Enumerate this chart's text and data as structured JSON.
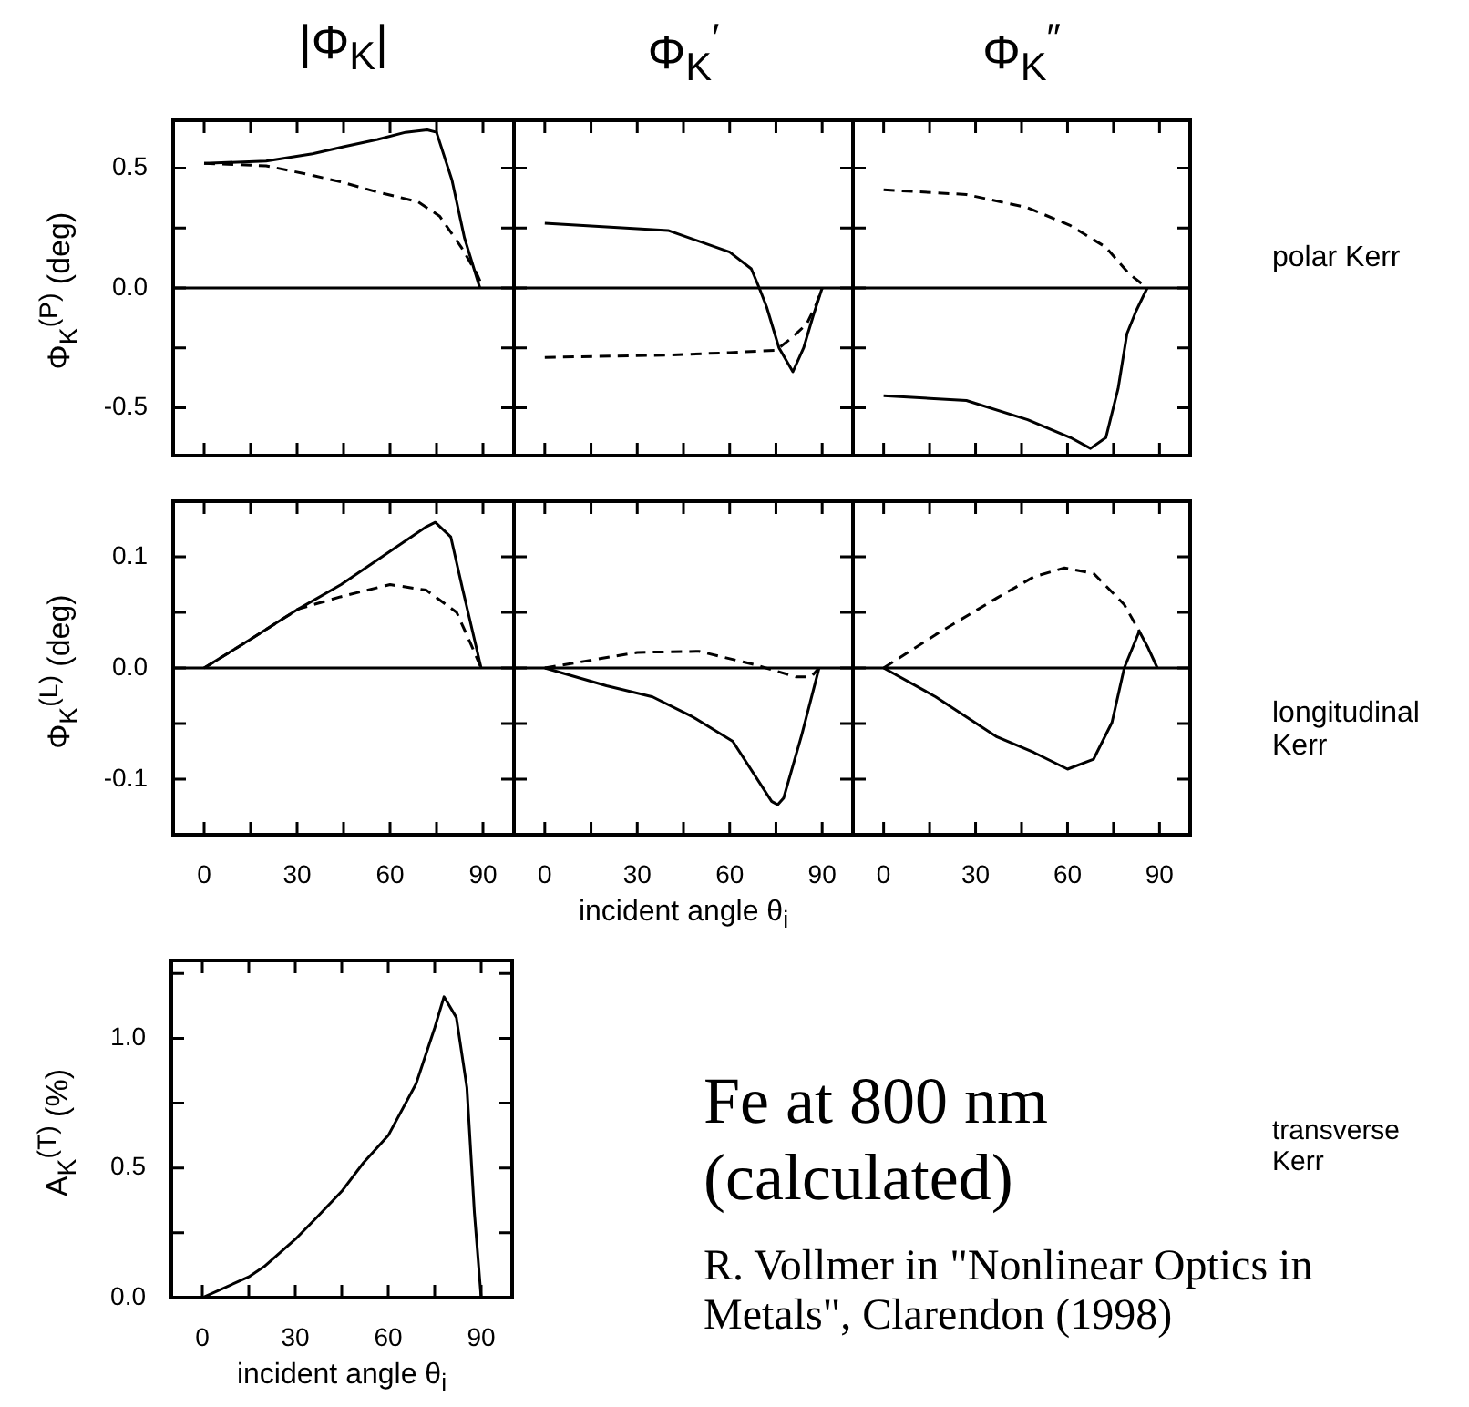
{
  "chart_data": [
    {
      "type": "line",
      "title": "|Φ$_{K}$|",
      "ylabel": "Φ$_{K}$$^{(P)}$ (deg)",
      "xlim": [
        -10,
        100
      ],
      "ylim": [
        -0.7,
        0.7
      ],
      "xticks": [
        0,
        {
          "value": 15,
          "label": null
        },
        30,
        {
          "value": 45,
          "label": null
        },
        60,
        {
          "value": 75,
          "label": null
        },
        90
      ],
      "yticks": [
        -0.5,
        {
          "value": -0.25,
          "label": null
        },
        {
          "value": 0,
          "label": "0.0"
        },
        {
          "value": 0.25,
          "label": null
        },
        0.5
      ],
      "tick_labels": "y",
      "ref_lines": [
        {
          "axis": "y",
          "value": 0
        }
      ],
      "series": [
        {
          "color": "#000000",
          "line_style": "solid",
          "x": [
            0,
            20,
            35,
            45,
            56,
            65,
            72,
            75,
            80,
            84,
            89
          ],
          "values": [
            0.52,
            0.53,
            0.56,
            0.59,
            0.62,
            0.65,
            0.66,
            0.65,
            0.45,
            0.21,
            0
          ]
        },
        {
          "color": "#000000",
          "line_style": "dashed",
          "x": [
            0,
            20,
            35,
            45,
            56,
            69,
            76,
            83,
            88,
            90
          ],
          "values": [
            0.52,
            0.51,
            0.47,
            0.44,
            0.4,
            0.36,
            0.3,
            0.17,
            0.06,
            0
          ]
        }
      ]
    },
    {
      "type": "line",
      "title": "Φ$_{K}$$^{′}$",
      "xlim": [
        -10,
        100
      ],
      "ylim": [
        -0.7,
        0.7
      ],
      "xticks": [
        0,
        15,
        30,
        45,
        60,
        75,
        90
      ],
      "yticks": [
        -0.5,
        -0.25,
        0,
        0.25,
        0.5
      ],
      "tick_labels": false,
      "ref_lines": [
        {
          "axis": "y",
          "value": 0
        }
      ],
      "series": [
        {
          "color": "#000000",
          "line_style": "solid",
          "x": [
            0,
            40,
            60,
            67,
            69.6,
            72,
            76,
            80.5,
            84,
            87,
            90
          ],
          "values": [
            0.27,
            0.24,
            0.15,
            0.08,
            0,
            -0.08,
            -0.25,
            -0.35,
            -0.25,
            -0.12,
            0
          ]
        },
        {
          "color": "#000000",
          "line_style": "dashed",
          "x": [
            0,
            40,
            60,
            75,
            80,
            85,
            88,
            90
          ],
          "values": [
            -0.29,
            -0.28,
            -0.27,
            -0.26,
            -0.21,
            -0.15,
            -0.07,
            0
          ]
        }
      ]
    },
    {
      "type": "line",
      "title": "Φ$_{K}$$^{″}$",
      "xlim": [
        -10,
        100
      ],
      "ylim": [
        -0.7,
        0.7
      ],
      "xticks": [
        0,
        15,
        30,
        45,
        60,
        75,
        90
      ],
      "yticks": [
        -0.5,
        -0.25,
        0,
        0.25,
        0.5
      ],
      "tick_labels": false,
      "ref_lines": [
        {
          "axis": "y",
          "value": 0
        }
      ],
      "annotations": [
        "polar Kerr"
      ],
      "series": [
        {
          "color": "#000000",
          "line_style": "dashed",
          "x": [
            0,
            27,
            47,
            61,
            72.5,
            80,
            86
          ],
          "values": [
            0.41,
            0.39,
            0.335,
            0.26,
            0.17,
            0.06,
            0
          ]
        },
        {
          "color": "#000000",
          "line_style": "solid",
          "x": [
            0,
            27,
            47,
            61,
            67.5,
            72.5,
            76.5,
            79.4,
            82.4,
            86
          ],
          "values": [
            -0.45,
            -0.47,
            -0.55,
            -0.625,
            -0.67,
            -0.625,
            -0.42,
            -0.19,
            -0.095,
            0
          ]
        }
      ]
    },
    {
      "type": "line",
      "ylabel": "Φ$_{K}$$^{(L)}$ (deg)",
      "xlim": [
        -10,
        100
      ],
      "ylim": [
        -0.15,
        0.15
      ],
      "xticks": [
        0,
        {
          "value": 15,
          "label": null
        },
        30,
        {
          "value": 45,
          "label": null
        },
        60,
        {
          "value": 75,
          "label": null
        },
        90
      ],
      "yticks": [
        -0.1,
        {
          "value": -0.05,
          "label": null
        },
        {
          "value": 0,
          "label": "0.0"
        },
        {
          "value": 0.05,
          "label": null
        },
        0.1
      ],
      "ref_lines": [
        {
          "axis": "y",
          "value": 0
        }
      ],
      "series": [
        {
          "color": "#000000",
          "line_style": "solid",
          "x": [
            0,
            15.7,
            30.4,
            44.2,
            60,
            71.7,
            74.6,
            79.6,
            83.5,
            89.4
          ],
          "values": [
            0,
            0.027,
            0.053,
            0.075,
            0.105,
            0.127,
            0.131,
            0.118,
            0.07,
            0
          ]
        },
        {
          "color": "#000000",
          "line_style": "dashed",
          "x": [
            0,
            15.7,
            30.4,
            44,
            60,
            71.7,
            81.5,
            86,
            89.4
          ],
          "values": [
            0,
            0.027,
            0.053,
            0.064,
            0.075,
            0.07,
            0.05,
            0.022,
            0
          ]
        }
      ]
    },
    {
      "type": "line",
      "xlabel": "incident angle θ$_{i}$",
      "xlim": [
        -10,
        100
      ],
      "ylim": [
        -0.15,
        0.15
      ],
      "xticks": [
        0,
        {
          "value": 15,
          "label": null
        },
        30,
        {
          "value": 45,
          "label": null
        },
        60,
        {
          "value": 75,
          "label": null
        },
        90
      ],
      "yticks": [
        -0.1,
        -0.05,
        0,
        0.05,
        0.1
      ],
      "tick_labels": "x",
      "ref_lines": [
        {
          "axis": "y",
          "value": 0
        }
      ],
      "series": [
        {
          "color": "#000000",
          "line_style": "solid",
          "x": [
            0,
            20,
            35,
            48,
            61,
            73.6,
            75.6,
            77.5,
            83.4,
            89
          ],
          "values": [
            0,
            -0.016,
            -0.026,
            -0.044,
            -0.066,
            -0.12,
            -0.123,
            -0.117,
            -0.06,
            0
          ]
        },
        {
          "color": "#000000",
          "line_style": "dashed",
          "x": [
            0,
            30,
            50,
            68,
            81.5,
            86.4,
            89
          ],
          "values": [
            0,
            0.014,
            0.015,
            0.003,
            -0.008,
            -0.008,
            0
          ]
        }
      ]
    },
    {
      "type": "line",
      "xlim": [
        -10,
        100
      ],
      "ylim": [
        -0.15,
        0.15
      ],
      "xticks": [
        0,
        {
          "value": 15,
          "label": null
        },
        30,
        {
          "value": 45,
          "label": null
        },
        60,
        {
          "value": 75,
          "label": null
        },
        90
      ],
      "yticks": [
        -0.1,
        -0.05,
        0,
        0.05,
        0.1
      ],
      "tick_labels": "x",
      "ref_lines": [
        {
          "axis": "y",
          "value": 0
        }
      ],
      "annotations": [
        "longitudinal Kerr"
      ],
      "series": [
        {
          "color": "#000000",
          "line_style": "dashed",
          "x": [
            0,
            17,
            37,
            49,
            59,
            68.5,
            78.5,
            83.4
          ],
          "values": [
            0,
            0.03,
            0.063,
            0.082,
            0.09,
            0.085,
            0.057,
            0.033
          ]
        },
        {
          "color": "#000000",
          "line_style": "solid",
          "x": [
            0,
            17,
            37,
            49,
            60,
            68.5,
            74.5,
            78.5,
            83.4,
            86.3,
            89.3
          ],
          "values": [
            0,
            -0.026,
            -0.062,
            -0.076,
            -0.091,
            -0.082,
            -0.049,
            0,
            0.033,
            0.018,
            0
          ]
        }
      ]
    },
    {
      "type": "line",
      "xlabel": "incident angle θ$_{i}$",
      "ylabel": "A$_{K}$$^{(T)}$ (%)",
      "xlim": [
        -10,
        100
      ],
      "ylim": [
        0,
        1.3
      ],
      "xticks": [
        0,
        {
          "value": 15,
          "label": null
        },
        30,
        {
          "value": 45,
          "label": null
        },
        60,
        {
          "value": 75,
          "label": null
        },
        90
      ],
      "yticks": [
        {
          "value": 0,
          "label": "0.0"
        },
        {
          "value": 0.25,
          "label": null
        },
        0.5,
        {
          "value": 0.75,
          "label": null
        },
        {
          "value": 1,
          "label": "1.0"
        },
        {
          "value": 1.25,
          "label": null
        }
      ],
      "annotations": [
        "transverse Kerr",
        "Fe at 800 nm (calculated)",
        "R. Vollmer in \"Nonlinear Optics in Metals\", Clarendon (1998)"
      ],
      "series": [
        {
          "color": "#000000",
          "line_style": "solid",
          "x": [
            0,
            15,
            20,
            30,
            37,
            45,
            52,
            60,
            69,
            75,
            78,
            82,
            85.4,
            87.8,
            90
          ],
          "values": [
            0,
            0.08,
            0.12,
            0.225,
            0.31,
            0.41,
            0.52,
            0.625,
            0.825,
            1.04,
            1.16,
            1.08,
            0.81,
            0.33,
            0
          ]
        }
      ]
    }
  ]
}
